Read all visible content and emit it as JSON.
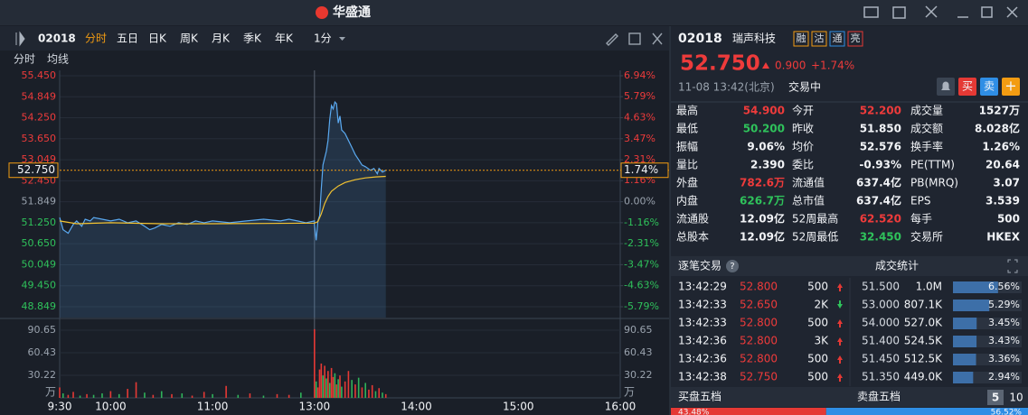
{
  "app": {
    "logo": "华盛通"
  },
  "toolbar": {
    "code": "02018",
    "tabs": [
      "分时",
      "五日",
      "日K",
      "周K",
      "月K",
      "季K",
      "年K"
    ],
    "interval": "1分"
  },
  "price_chart": {
    "ylim": [
      48.849,
      55.45
    ],
    "yticks": [
      {
        "value": 55.45,
        "label": "55.450"
      },
      54.849,
      {
        "value": 54.25,
        "label": "54.250"
      },
      {
        "value": 53.65,
        "label": "53.650"
      },
      53.049,
      {
        "value": 52.45,
        "label": "52.450"
      },
      51.849,
      {
        "value": 51.25,
        "label": "51.250"
      },
      {
        "value": 50.65,
        "label": "50.650"
      },
      50.049,
      {
        "value": 49.45,
        "label": "49.450"
      },
      48.849
    ],
    "y2lim": [
      -5.79,
      6.94
    ],
    "y2ticks": [
      {
        "value": 6.94,
        "label": "6.94%"
      },
      {
        "value": 5.79,
        "label": "5.79%"
      },
      {
        "value": 4.63,
        "label": "4.63%"
      },
      {
        "value": 3.47,
        "label": "3.47%"
      },
      {
        "value": 2.31,
        "label": "2.31%"
      },
      {
        "value": 1.16,
        "label": "1.16%"
      },
      {
        "value": 0,
        "label": "0.00%"
      },
      {
        "value": -1.16,
        "label": "-1.16%"
      },
      {
        "value": -2.31,
        "label": "-2.31%"
      },
      {
        "value": -3.47,
        "label": "-3.47%"
      },
      {
        "value": -4.63,
        "label": "-4.63%"
      },
      {
        "value": -5.79,
        "label": "-5.79%"
      }
    ],
    "xticks": [
      "9:30",
      "10:00",
      "11:00",
      "13:00",
      "14:00",
      "15:00",
      "16:00"
    ],
    "current": {
      "value": 52.75,
      "label": "52.750",
      "change_label": "1.74%"
    },
    "series": [
      {
        "name": "分时",
        "color": "#5aa9f0",
        "x": [
          "9:30",
          "9:32",
          "9:35",
          "9:38",
          "9:40",
          "9:43",
          "9:45",
          "9:48",
          "9:50",
          "9:55",
          "10:00",
          "10:05",
          "10:10",
          "10:15",
          "10:20",
          "10:23",
          "10:26",
          "10:30",
          "10:35",
          "10:40",
          "10:45",
          "10:50",
          "10:55",
          "11:00",
          "11:10",
          "11:20",
          "11:30",
          "11:40",
          "11:45",
          "11:50",
          "11:55",
          "12:00",
          "13:00",
          "13:01",
          "13:02",
          "13:03",
          "13:04",
          "13:05",
          "13:07",
          "13:08",
          "13:09",
          "13:10",
          "13:11",
          "13:12",
          "13:13",
          "13:14",
          "13:15",
          "13:16",
          "13:18",
          "13:20",
          "13:22",
          "13:24",
          "13:26",
          "13:28",
          "13:30",
          "13:33",
          "13:35",
          "13:37",
          "13:38",
          "13:40",
          "13:42"
        ],
        "values": [
          51.4,
          51.05,
          50.95,
          51.2,
          51.3,
          51.15,
          51.35,
          51.3,
          51.4,
          51.35,
          51.3,
          51.35,
          51.25,
          51.3,
          51.15,
          51.05,
          51.1,
          51.2,
          51.15,
          51.25,
          51.2,
          51.3,
          51.25,
          51.3,
          51.25,
          51.3,
          51.35,
          51.3,
          51.35,
          51.3,
          51.25,
          51.3,
          51.2,
          50.75,
          51.3,
          51.45,
          52.2,
          52.9,
          53.3,
          53.6,
          54.2,
          54.6,
          54.5,
          54.7,
          54.65,
          54.1,
          54.3,
          53.9,
          53.8,
          53.6,
          53.4,
          53.2,
          53.05,
          52.9,
          52.85,
          52.75,
          52.8,
          52.65,
          52.8,
          52.7,
          52.75
        ]
      },
      {
        "name": "均线",
        "color": "#f2c230",
        "x": [
          "9:30",
          "9:40",
          "10:00",
          "10:30",
          "11:00",
          "11:30",
          "12:00",
          "13:00",
          "13:02",
          "13:04",
          "13:06",
          "13:08",
          "13:10",
          "13:14",
          "13:18",
          "13:24",
          "13:30",
          "13:36",
          "13:42"
        ],
        "values": [
          51.3,
          51.22,
          51.25,
          51.22,
          51.22,
          51.23,
          51.24,
          51.24,
          51.28,
          51.5,
          51.8,
          52.0,
          52.15,
          52.3,
          52.4,
          52.48,
          52.53,
          52.56,
          52.576
        ]
      }
    ]
  },
  "volume_chart": {
    "ylim": [
      0,
      90.65
    ],
    "yticks": [
      90.65,
      60.43,
      30.22
    ],
    "unit": "万",
    "x": [
      "9:30",
      "9:32",
      "9:35",
      "9:38",
      "9:42",
      "9:46",
      "9:50",
      "9:55",
      "10:00",
      "10:05",
      "10:10",
      "10:15",
      "10:20",
      "10:25",
      "10:30",
      "10:36",
      "10:42",
      "10:48",
      "10:55",
      "11:00",
      "11:08",
      "11:15",
      "11:22",
      "11:30",
      "11:38",
      "11:45",
      "11:52",
      "12:00",
      "13:00",
      "13:01",
      "13:02",
      "13:03",
      "13:04",
      "13:05",
      "13:06",
      "13:07",
      "13:08",
      "13:09",
      "13:10",
      "13:11",
      "13:12",
      "13:13",
      "13:14",
      "13:15",
      "13:16",
      "13:18",
      "13:20",
      "13:22",
      "13:24",
      "13:26",
      "13:28",
      "13:30",
      "13:32",
      "13:34",
      "13:36",
      "13:38",
      "13:40",
      "13:42"
    ],
    "values": [
      14,
      6,
      4,
      8,
      3,
      5,
      4,
      6,
      9,
      5,
      12,
      21,
      7,
      4,
      9,
      5,
      6,
      3,
      8,
      5,
      16,
      4,
      6,
      3,
      5,
      4,
      7,
      11,
      92,
      22,
      14,
      38,
      46,
      30,
      43,
      26,
      36,
      20,
      40,
      28,
      33,
      18,
      25,
      30,
      15,
      22,
      36,
      24,
      18,
      27,
      14,
      20,
      11,
      17,
      9,
      13,
      7,
      5
    ],
    "colors": [
      "#e53935",
      "#2fb35a",
      "#e53935",
      "#e53935",
      "#2fb35a",
      "#e53935",
      "#2fb35a",
      "#2fb35a",
      "#e53935",
      "#2fb35a",
      "#e53935",
      "#e53935",
      "#2fb35a",
      "#e53935",
      "#2fb35a",
      "#e53935",
      "#2fb35a",
      "#e53935",
      "#e53935",
      "#2fb35a",
      "#e53935",
      "#2fb35a",
      "#e53935",
      "#2fb35a",
      "#e53935",
      "#e53935",
      "#2fb35a",
      "#e53935",
      "#e53935",
      "#2fb35a",
      "#e53935",
      "#e53935",
      "#e53935",
      "#2fb35a",
      "#e53935",
      "#2fb35a",
      "#e53935",
      "#2fb35a",
      "#e53935",
      "#e53935",
      "#2fb35a",
      "#e53935",
      "#2fb35a",
      "#e53935",
      "#2fb35a",
      "#e53935",
      "#e53935",
      "#2fb35a",
      "#e53935",
      "#2fb35a",
      "#e53935",
      "#2fb35a",
      "#e53935",
      "#e53935",
      "#2fb35a",
      "#e53935",
      "#2fb35a",
      "#e53935"
    ]
  },
  "quote": {
    "code": "02018",
    "name": "瑞声科技",
    "tags": [
      "融",
      "沽",
      "通",
      "亮"
    ],
    "price": "52.750",
    "change": "0.900",
    "change_pct": "+1.74%",
    "time": "11-08 13:42(北京)",
    "status": "交易中",
    "buy": "买",
    "sell": "卖",
    "add": "+"
  },
  "stats": {
    "rows": [
      [
        "最高",
        "54.900",
        "今开",
        "52.200",
        "成交量",
        "1527万"
      ],
      [
        "最低",
        "50.200",
        "昨收",
        "51.850",
        "成交额",
        "8.028亿"
      ],
      [
        "振幅",
        "9.06%",
        "均价",
        "52.576",
        "换手率",
        "1.26%"
      ],
      [
        "量比",
        "2.390",
        "委比",
        "-0.93%",
        "PE(TTM)",
        "20.64"
      ],
      [
        "外盘",
        "782.6万",
        "流通值",
        "637.4亿",
        "PB(MRQ)",
        "3.07"
      ],
      [
        "内盘",
        "626.7万",
        "总市值",
        "637.4亿",
        "EPS",
        "3.539"
      ],
      [
        "流通股",
        "12.09亿",
        "52周最高",
        "62.520",
        "每手",
        "500"
      ],
      [
        "总股本",
        "12.09亿",
        "52周最低",
        "32.450",
        "交易所",
        "HKEX"
      ]
    ]
  },
  "trades": {
    "title": "逐笔交易",
    "help": "?",
    "rows": [
      {
        "time": "13:42:29",
        "price": "52.800",
        "volume": "500",
        "direction": "up"
      },
      {
        "time": "13:42:33",
        "price": "52.650",
        "volume": "2K",
        "direction": "down"
      },
      {
        "time": "13:42:33",
        "price": "52.800",
        "volume": "500",
        "direction": "up"
      },
      {
        "time": "13:42:36",
        "price": "52.800",
        "volume": "3K",
        "direction": "up"
      },
      {
        "time": "13:42:36",
        "price": "52.800",
        "volume": "500",
        "direction": "up"
      },
      {
        "time": "13:42:38",
        "price": "52.750",
        "volume": "500",
        "direction": "up"
      }
    ]
  },
  "volume_stats": {
    "title": "成交统计",
    "prices": [
      "51.500",
      "53.000",
      "54.000",
      "51.400",
      "51.450",
      "51.350"
    ],
    "price_colors": [
      "#2fb35a",
      "#e53935",
      "#e53935",
      "#2fb35a",
      "#2fb35a",
      "#2fb35a"
    ],
    "volumes": [
      "1.0M",
      "807.1K",
      "527.0K",
      "524.5K",
      "512.5K",
      "449.0K"
    ],
    "values": [
      6.56,
      5.29,
      3.45,
      3.43,
      3.36,
      2.94
    ],
    "value_labels": [
      "6.56%",
      "5.29%",
      "3.45%",
      "3.43%",
      "3.36%",
      "2.94%"
    ]
  },
  "depth": {
    "bid_title": "买盘五档",
    "ask_title": "卖盘五档",
    "levels": [
      "5",
      "10"
    ],
    "bid_pct": 43.48,
    "bid_label": "43.48%",
    "ask_pct": 56.52,
    "ask_label": "56.52%"
  }
}
